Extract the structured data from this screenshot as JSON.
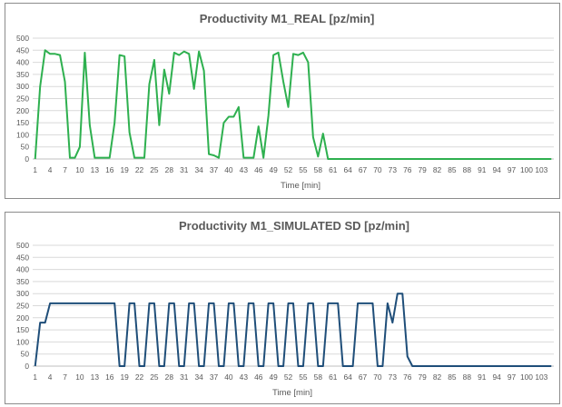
{
  "chart_data": [
    {
      "type": "line",
      "title": "Productivity M1_REAL [pz/min]",
      "xlabel": "Time [min]",
      "ylabel": "",
      "ylim": [
        0,
        500
      ],
      "yticks": [
        "0",
        "50",
        "100",
        "150",
        "200",
        "250",
        "300",
        "350",
        "400",
        "450",
        "500"
      ],
      "xticks": [
        "1",
        "4",
        "7",
        "10",
        "13",
        "16",
        "19",
        "22",
        "25",
        "28",
        "31",
        "34",
        "37",
        "40",
        "43",
        "46",
        "49",
        "52",
        "55",
        "58",
        "61",
        "64",
        "67",
        "70",
        "73",
        "76",
        "79",
        "82",
        "85",
        "88",
        "91",
        "94",
        "97",
        "100",
        "103"
      ],
      "grid": true,
      "color": "#2eb04f",
      "series": [
        {
          "values": [
            0,
            300,
            450,
            435,
            435,
            430,
            320,
            5,
            5,
            50,
            440,
            140,
            5,
            5,
            5,
            5,
            150,
            430,
            425,
            110,
            5,
            5,
            5,
            310,
            410,
            140,
            370,
            270,
            440,
            430,
            445,
            435,
            290,
            445,
            365,
            20,
            15,
            5,
            150,
            175,
            175,
            215,
            5,
            5,
            5,
            135,
            5,
            180,
            430,
            440,
            320,
            215,
            435,
            430,
            440,
            400,
            90,
            10,
            105,
            0,
            0,
            0,
            0,
            0,
            0,
            0,
            0,
            0,
            0,
            0,
            0,
            0,
            0,
            0,
            0,
            0,
            0,
            0,
            0,
            0,
            0,
            0,
            0,
            0,
            0,
            0,
            0,
            0,
            0,
            0,
            0,
            0,
            0,
            0,
            0,
            0,
            0,
            0,
            0,
            0,
            0,
            0,
            0,
            0,
            0
          ]
        }
      ]
    },
    {
      "type": "line",
      "title": "Productivity M1_SIMULATED SD [pz/min]",
      "xlabel": "Time [min]",
      "ylabel": "",
      "ylim": [
        0,
        500
      ],
      "yticks": [
        "0",
        "50",
        "100",
        "150",
        "200",
        "250",
        "300",
        "350",
        "400",
        "450",
        "500"
      ],
      "xticks": [
        "1",
        "4",
        "7",
        "10",
        "13",
        "16",
        "19",
        "22",
        "25",
        "28",
        "31",
        "34",
        "37",
        "40",
        "43",
        "46",
        "49",
        "52",
        "55",
        "58",
        "61",
        "64",
        "67",
        "70",
        "73",
        "76",
        "79",
        "82",
        "85",
        "88",
        "91",
        "94",
        "97",
        "100",
        "103"
      ],
      "grid": true,
      "color": "#1f4e79",
      "series": [
        {
          "values": [
            0,
            180,
            180,
            260,
            260,
            260,
            260,
            260,
            260,
            260,
            260,
            260,
            260,
            260,
            260,
            260,
            260,
            0,
            0,
            260,
            260,
            0,
            0,
            260,
            260,
            0,
            0,
            260,
            260,
            0,
            0,
            260,
            260,
            0,
            0,
            260,
            260,
            0,
            0,
            260,
            260,
            0,
            0,
            260,
            260,
            0,
            0,
            260,
            260,
            0,
            0,
            260,
            260,
            0,
            0,
            260,
            260,
            0,
            0,
            260,
            260,
            260,
            0,
            0,
            0,
            260,
            260,
            260,
            260,
            0,
            0,
            260,
            180,
            300,
            300,
            40,
            0,
            0,
            0,
            0,
            0,
            0,
            0,
            0,
            0,
            0,
            0,
            0,
            0,
            0,
            0,
            0,
            0,
            0,
            0,
            0,
            0,
            0,
            0,
            0,
            0,
            0,
            0,
            0,
            0
          ]
        }
      ]
    }
  ]
}
